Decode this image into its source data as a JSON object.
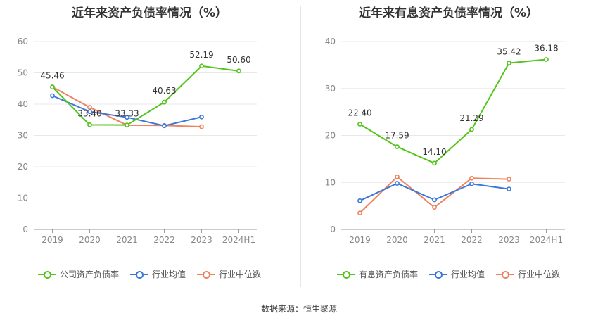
{
  "chart_data": [
    {
      "type": "line",
      "title": "近年来资产负债率情况（%）",
      "categories": [
        "2019",
        "2020",
        "2021",
        "2022",
        "2023",
        "2024H1"
      ],
      "ylim": [
        0,
        60
      ],
      "yticks": [
        0,
        10,
        20,
        30,
        40,
        50,
        60
      ],
      "grid": true,
      "legend_position": "bottom",
      "series": [
        {
          "name": "公司资产负债率",
          "color": "#52c41a",
          "values": [
            45.46,
            33.4,
            33.33,
            40.63,
            52.19,
            50.6
          ],
          "labels": [
            "45.46",
            "33.40",
            "33.33",
            "40.63",
            "52.19",
            "50.60"
          ]
        },
        {
          "name": "行业均值",
          "color": "#3a78d8",
          "values": [
            42.7,
            37.6,
            35.8,
            33.1,
            35.9,
            null
          ]
        },
        {
          "name": "行业中位数",
          "color": "#f0835f",
          "values": [
            45.5,
            39.0,
            33.3,
            33.2,
            32.8,
            null
          ]
        }
      ]
    },
    {
      "type": "line",
      "title": "近年来有息资产负债率情况（%）",
      "categories": [
        "2019",
        "2020",
        "2021",
        "2022",
        "2023",
        "2024H1"
      ],
      "ylim": [
        0,
        40
      ],
      "yticks": [
        0,
        10,
        20,
        30,
        40
      ],
      "grid": true,
      "legend_position": "bottom",
      "series": [
        {
          "name": "有息资产负债率",
          "color": "#52c41a",
          "values": [
            22.4,
            17.59,
            14.1,
            21.29,
            35.42,
            36.18
          ],
          "labels": [
            "22.40",
            "17.59",
            "14.10",
            "21.29",
            "35.42",
            "36.18"
          ]
        },
        {
          "name": "行业均值",
          "color": "#3a78d8",
          "values": [
            6.1,
            9.8,
            6.3,
            9.7,
            8.6,
            null
          ]
        },
        {
          "name": "行业中位数",
          "color": "#f0835f",
          "values": [
            3.5,
            11.2,
            4.7,
            10.9,
            10.7,
            null
          ]
        }
      ]
    }
  ],
  "footer": {
    "source": "数据来源：恒生聚源"
  }
}
